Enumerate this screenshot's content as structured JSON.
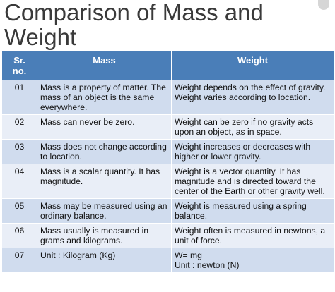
{
  "title": "Comparison of Mass and Weight",
  "headers": {
    "no": "Sr. no.",
    "no_line1": "Sr.",
    "no_line2": "no.",
    "mass": "Mass",
    "weight": "Weight"
  },
  "rows": [
    {
      "no": "01",
      "mass": "Mass is a property of matter. The mass of an object is the same everywhere.",
      "weight": "Weight depends on the effect of gravity. Weight varies according to location."
    },
    {
      "no": "02",
      "mass": "Mass can never be zero.",
      "weight": "Weight can be zero if no gravity acts upon an object, as in space."
    },
    {
      "no": "03",
      "mass": "Mass does not change according to location.",
      "weight": "Weight increases or decreases with higher or lower gravity."
    },
    {
      "no": "04",
      "mass": "Mass is a scalar quantity. It has magnitude.",
      "weight": "Weight is a vector quantity. It has magnitude and is directed toward the center of the Earth or other gravity well."
    },
    {
      "no": "05",
      "mass": "Mass may be measured using an ordinary balance.",
      "weight": "Weight is measured using a spring balance."
    },
    {
      "no": "06",
      "mass": "Mass usually is measured in grams and kilograms.",
      "weight": "Weight often is measured in newtons, a unit of force."
    },
    {
      "no": "07",
      "mass": "Unit : Kilogram (Kg)",
      "weight": "W= mg",
      "weight_unit": "Unit : newton (N)"
    }
  ],
  "colors": {
    "header": "#4a7eb8",
    "row_odd": "#d0dcee",
    "row_even": "#e9eef7",
    "title": "#3a3a3a"
  }
}
